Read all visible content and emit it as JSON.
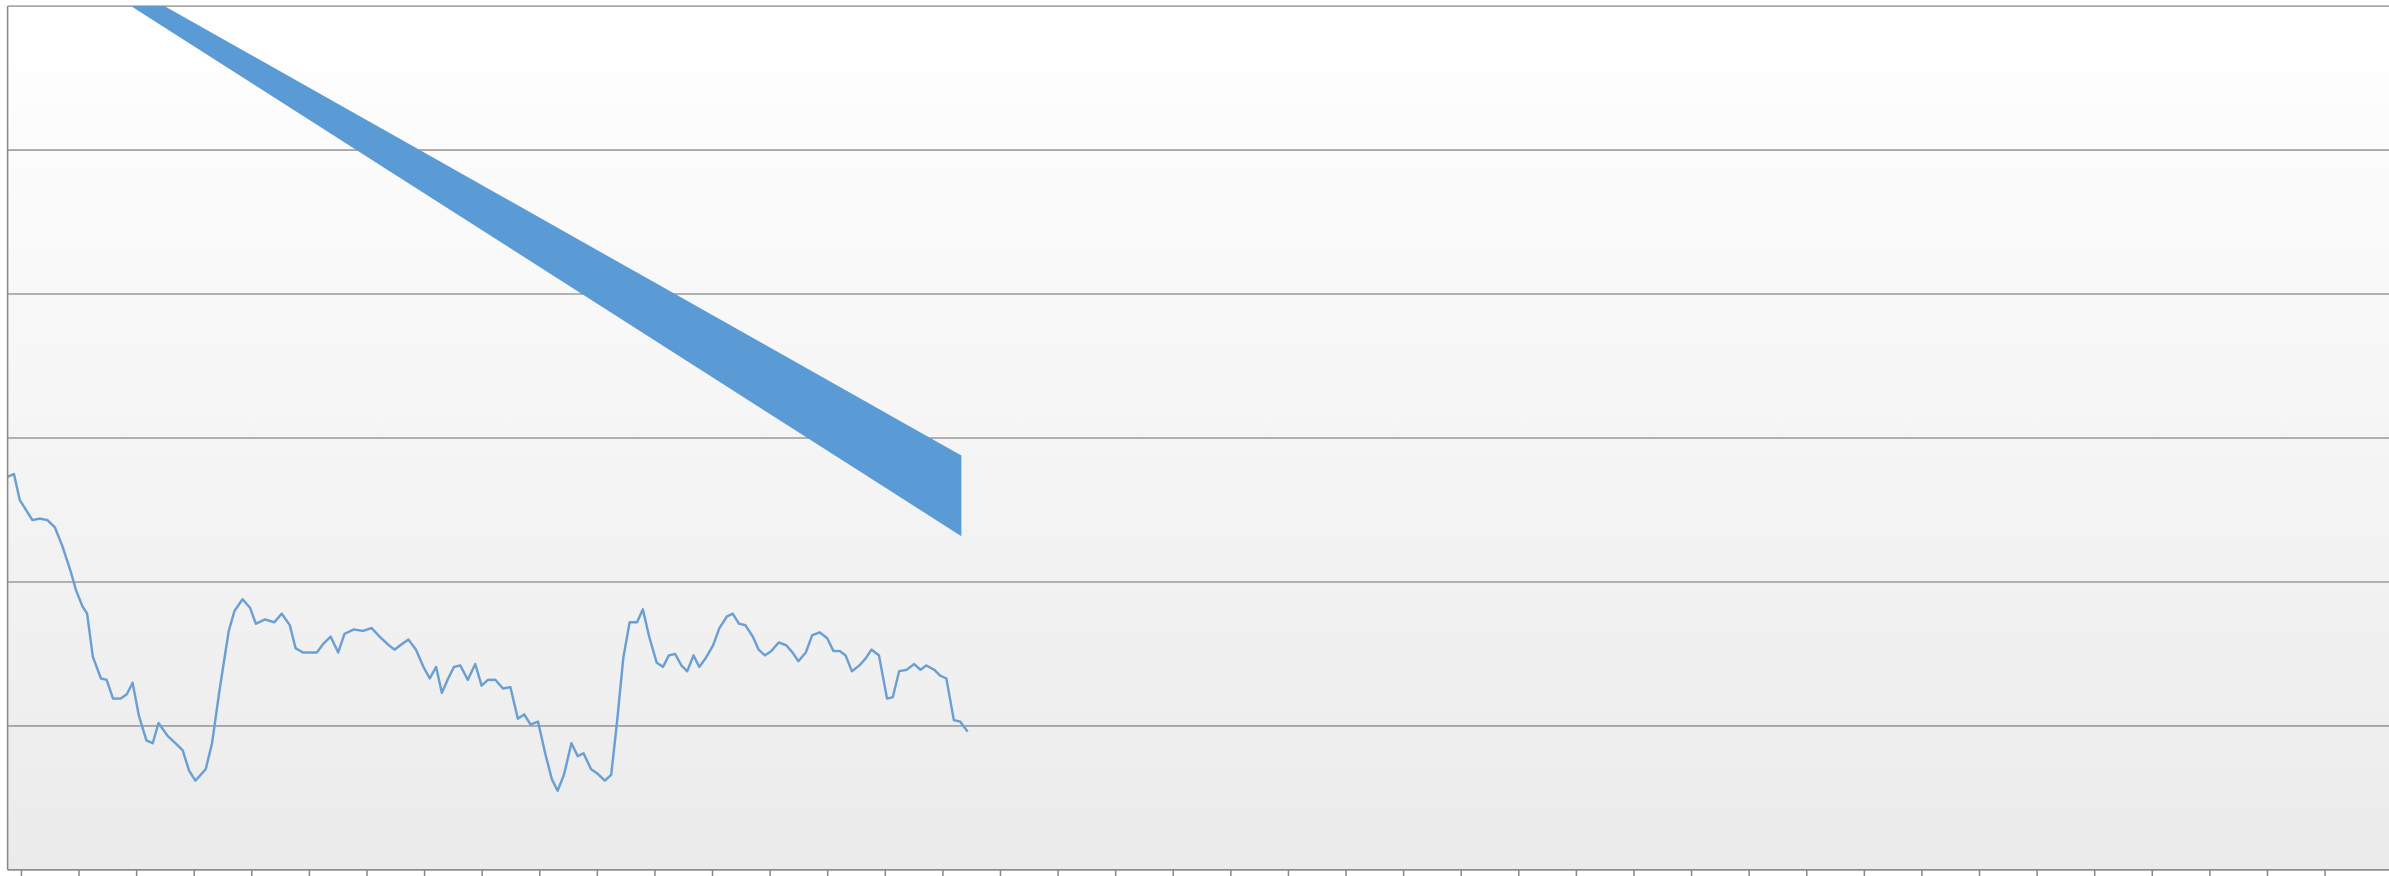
{
  "chart_data": {
    "type": "line",
    "color": "#6a9fd4",
    "grid": true,
    "xlim": [
      -0.24,
      41.11
    ],
    "ylim": [
      0,
      6
    ],
    "xticks": [
      0,
      1,
      2,
      3,
      4,
      5,
      6,
      7,
      8,
      9,
      10,
      11,
      12,
      13,
      14,
      15,
      16,
      17,
      18,
      19,
      20,
      21,
      22,
      23,
      24,
      25,
      26,
      27,
      28,
      29,
      30,
      31,
      32,
      33,
      34,
      35,
      36,
      37,
      38,
      39,
      40
    ],
    "yticks": [
      0,
      1,
      2,
      3,
      4,
      5,
      6
    ],
    "x": [
      -0.24,
      -0.13,
      -0.03,
      0.19,
      0.32,
      0.45,
      0.58,
      0.71,
      0.85,
      0.95,
      1.06,
      1.14,
      1.24,
      1.38,
      1.48,
      1.59,
      1.72,
      1.83,
      1.93,
      2.04,
      2.17,
      2.28,
      2.38,
      2.54,
      2.7,
      2.8,
      2.91,
      3.02,
      3.2,
      3.31,
      3.44,
      3.6,
      3.7,
      3.84,
      3.97,
      4.07,
      4.23,
      4.39,
      4.52,
      4.66,
      4.76,
      4.89,
      5.0,
      5.13,
      5.24,
      5.37,
      5.5,
      5.61,
      5.77,
      5.93,
      6.08,
      6.22,
      6.38,
      6.48,
      6.61,
      6.72,
      6.85,
      6.98,
      7.09,
      7.2,
      7.3,
      7.41,
      7.51,
      7.62,
      7.75,
      7.88,
      7.99,
      8.1,
      8.23,
      8.36,
      8.49,
      8.62,
      8.73,
      8.84,
      8.97,
      9.1,
      9.21,
      9.31,
      9.42,
      9.55,
      9.66,
      9.76,
      9.89,
      10.0,
      10.13,
      10.24,
      10.34,
      10.45,
      10.56,
      10.69,
      10.79,
      10.9,
      11.03,
      11.14,
      11.24,
      11.35,
      11.46,
      11.56,
      11.67,
      11.77,
      11.88,
      12.01,
      12.12,
      12.25,
      12.35,
      12.46,
      12.57,
      12.7,
      12.8,
      12.91,
      13.02,
      13.15,
      13.28,
      13.39,
      13.49,
      13.62,
      13.73,
      13.86,
      13.99,
      14.1,
      14.21,
      14.31,
      14.42,
      14.55,
      14.66,
      14.76,
      14.89,
      15.03,
      15.13,
      15.24,
      15.37,
      15.5,
      15.61,
      15.71,
      15.85,
      15.95,
      16.06,
      16.19,
      16.3,
      16.43
    ],
    "values": [
      2.73,
      2.75,
      2.57,
      2.43,
      2.44,
      2.43,
      2.38,
      2.25,
      2.08,
      1.94,
      1.83,
      1.78,
      1.48,
      1.33,
      1.32,
      1.19,
      1.19,
      1.22,
      1.3,
      1.07,
      0.9,
      0.88,
      1.02,
      0.93,
      0.87,
      0.83,
      0.69,
      0.62,
      0.7,
      0.88,
      1.25,
      1.66,
      1.8,
      1.88,
      1.82,
      1.71,
      1.74,
      1.72,
      1.78,
      1.7,
      1.54,
      1.51,
      1.51,
      1.51,
      1.57,
      1.62,
      1.51,
      1.64,
      1.67,
      1.66,
      1.68,
      1.62,
      1.56,
      1.53,
      1.57,
      1.6,
      1.53,
      1.41,
      1.33,
      1.41,
      1.23,
      1.33,
      1.41,
      1.42,
      1.32,
      1.43,
      1.28,
      1.32,
      1.32,
      1.26,
      1.27,
      1.05,
      1.08,
      1.01,
      1.03,
      0.8,
      0.63,
      0.55,
      0.66,
      0.88,
      0.79,
      0.81,
      0.7,
      0.67,
      0.62,
      0.66,
      1.02,
      1.47,
      1.72,
      1.72,
      1.81,
      1.62,
      1.44,
      1.41,
      1.49,
      1.5,
      1.42,
      1.38,
      1.49,
      1.41,
      1.47,
      1.56,
      1.68,
      1.76,
      1.78,
      1.71,
      1.7,
      1.62,
      1.53,
      1.49,
      1.52,
      1.58,
      1.56,
      1.51,
      1.45,
      1.51,
      1.63,
      1.65,
      1.61,
      1.52,
      1.52,
      1.49,
      1.38,
      1.42,
      1.47,
      1.53,
      1.49,
      1.19,
      1.2,
      1.38,
      1.39,
      1.43,
      1.39,
      1.42,
      1.39,
      1.35,
      1.33,
      1.04,
      1.03,
      0.96
    ]
  }
}
